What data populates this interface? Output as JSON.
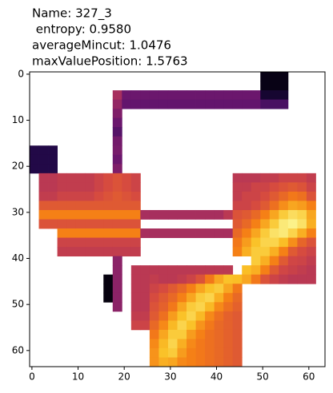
{
  "chart_data": {
    "type": "heatmap",
    "title": [
      "Name: 327_3",
      " entropy: 0.9580",
      "averageMincut: 1.0476",
      "maxValuePosition: 1.5763"
    ],
    "colormap": "inferno",
    "xlim": [
      -0.5,
      63.5
    ],
    "ylim": [
      63.5,
      -0.5
    ],
    "xticks": [
      0,
      10,
      20,
      30,
      40,
      50,
      60
    ],
    "yticks": [
      0,
      10,
      20,
      30,
      40,
      50,
      60
    ],
    "values": [
      [
        null,
        null,
        null,
        null,
        null,
        null,
        null,
        null,
        null,
        null,
        null,
        null,
        null,
        null,
        null,
        null,
        null,
        null,
        null,
        null,
        null,
        null,
        null,
        null,
        null,
        0.03,
        0.03,
        0.03,
        null,
        null,
        null,
        null
      ],
      [
        null,
        null,
        null,
        null,
        null,
        null,
        null,
        null,
        null,
        null,
        null,
        null,
        null,
        null,
        null,
        null,
        null,
        null,
        null,
        null,
        null,
        null,
        null,
        null,
        null,
        0.03,
        0.03,
        0.03,
        null,
        null,
        null,
        null
      ],
      [
        null,
        null,
        null,
        null,
        null,
        null,
        null,
        null,
        null,
        0.45,
        0.3,
        0.3,
        0.3,
        0.3,
        0.3,
        0.3,
        0.3,
        0.3,
        0.3,
        0.3,
        0.3,
        0.3,
        0.3,
        0.3,
        0.3,
        0.08,
        0.08,
        0.08,
        null,
        null,
        null,
        null
      ],
      [
        null,
        null,
        null,
        null,
        null,
        null,
        null,
        null,
        null,
        0.4,
        0.28,
        0.28,
        0.28,
        0.28,
        0.28,
        0.28,
        0.28,
        0.28,
        0.28,
        0.28,
        0.28,
        0.28,
        0.28,
        0.28,
        0.28,
        0.22,
        0.22,
        0.22,
        null,
        null,
        null,
        null
      ],
      [
        null,
        null,
        null,
        null,
        null,
        null,
        null,
        null,
        null,
        0.35,
        null,
        null,
        null,
        null,
        null,
        null,
        null,
        null,
        null,
        null,
        null,
        null,
        null,
        null,
        null,
        null,
        null,
        null,
        null,
        null,
        null,
        null
      ],
      [
        null,
        null,
        null,
        null,
        null,
        null,
        null,
        null,
        null,
        0.3,
        null,
        null,
        null,
        null,
        null,
        null,
        null,
        null,
        null,
        null,
        null,
        null,
        null,
        null,
        null,
        null,
        null,
        null,
        null,
        null,
        null,
        null
      ],
      [
        null,
        null,
        null,
        null,
        null,
        null,
        null,
        null,
        null,
        0.25,
        null,
        null,
        null,
        null,
        null,
        null,
        null,
        null,
        null,
        null,
        null,
        null,
        null,
        null,
        null,
        null,
        null,
        null,
        null,
        null,
        null,
        null
      ],
      [
        null,
        null,
        null,
        null,
        null,
        null,
        null,
        null,
        null,
        0.32,
        null,
        null,
        null,
        null,
        null,
        null,
        null,
        null,
        null,
        null,
        null,
        null,
        null,
        null,
        null,
        null,
        null,
        null,
        null,
        null,
        null,
        null
      ],
      [
        0.12,
        0.12,
        0.12,
        null,
        null,
        null,
        null,
        null,
        null,
        0.33,
        null,
        null,
        null,
        null,
        null,
        null,
        null,
        null,
        null,
        null,
        null,
        null,
        null,
        null,
        null,
        null,
        null,
        null,
        null,
        null,
        null,
        null
      ],
      [
        0.12,
        0.12,
        0.12,
        null,
        null,
        null,
        null,
        null,
        null,
        0.3,
        null,
        null,
        null,
        null,
        null,
        null,
        null,
        null,
        null,
        null,
        null,
        null,
        null,
        null,
        null,
        null,
        null,
        null,
        null,
        null,
        null,
        null
      ],
      [
        0.12,
        0.12,
        0.12,
        null,
        null,
        null,
        null,
        null,
        null,
        0.35,
        null,
        null,
        null,
        null,
        null,
        null,
        null,
        null,
        null,
        null,
        null,
        null,
        null,
        null,
        null,
        null,
        null,
        null,
        null,
        null,
        null,
        null
      ],
      [
        null,
        0.5,
        0.5,
        0.52,
        0.52,
        0.52,
        0.52,
        0.55,
        0.58,
        0.6,
        0.58,
        0.55,
        null,
        null,
        null,
        null,
        null,
        null,
        null,
        null,
        null,
        null,
        0.5,
        0.5,
        0.5,
        0.52,
        0.52,
        0.55,
        0.55,
        0.55,
        0.52,
        null
      ],
      [
        null,
        0.5,
        0.5,
        0.52,
        0.52,
        0.52,
        0.52,
        0.55,
        0.58,
        0.6,
        0.58,
        0.55,
        null,
        null,
        null,
        null,
        null,
        null,
        null,
        null,
        null,
        null,
        0.52,
        0.52,
        0.55,
        0.55,
        0.58,
        0.6,
        0.62,
        0.6,
        0.55,
        null
      ],
      [
        null,
        0.52,
        0.52,
        0.55,
        0.55,
        0.55,
        0.55,
        0.58,
        0.6,
        0.62,
        0.6,
        0.58,
        null,
        null,
        null,
        null,
        null,
        null,
        null,
        null,
        null,
        null,
        0.52,
        0.55,
        0.55,
        0.58,
        0.62,
        0.66,
        0.7,
        0.68,
        0.6,
        null
      ],
      [
        null,
        0.62,
        0.62,
        0.62,
        0.62,
        0.62,
        0.62,
        0.62,
        0.62,
        0.62,
        0.62,
        0.62,
        null,
        null,
        null,
        null,
        null,
        null,
        null,
        null,
        null,
        null,
        0.55,
        0.55,
        0.58,
        0.62,
        0.68,
        0.75,
        0.8,
        0.78,
        0.72,
        null
      ],
      [
        null,
        0.72,
        0.72,
        0.72,
        0.72,
        0.72,
        0.72,
        0.72,
        0.72,
        0.72,
        0.72,
        0.72,
        0.45,
        0.45,
        0.45,
        0.45,
        0.45,
        0.45,
        0.45,
        0.45,
        0.45,
        0.5,
        0.6,
        0.62,
        0.66,
        0.72,
        0.8,
        0.88,
        0.92,
        0.9,
        0.8,
        null
      ],
      [
        null,
        0.6,
        0.6,
        0.6,
        0.6,
        0.6,
        0.6,
        0.6,
        0.6,
        0.6,
        0.6,
        0.6,
        null,
        null,
        null,
        null,
        null,
        null,
        null,
        null,
        null,
        null,
        0.62,
        0.66,
        0.72,
        0.8,
        0.88,
        0.95,
        0.97,
        0.93,
        0.82,
        null
      ],
      [
        null,
        null,
        null,
        0.72,
        0.72,
        0.72,
        0.72,
        0.72,
        0.72,
        0.72,
        0.72,
        0.72,
        0.45,
        0.45,
        0.45,
        0.45,
        0.45,
        0.45,
        0.45,
        0.45,
        0.45,
        0.45,
        0.66,
        0.72,
        0.8,
        0.88,
        0.93,
        0.95,
        0.9,
        0.82,
        0.72,
        null
      ],
      [
        null,
        null,
        null,
        0.55,
        0.55,
        0.55,
        0.55,
        0.55,
        0.55,
        0.55,
        0.55,
        0.55,
        null,
        null,
        null,
        null,
        null,
        null,
        null,
        null,
        null,
        null,
        0.7,
        0.78,
        0.86,
        0.9,
        0.9,
        0.85,
        0.75,
        0.65,
        0.6,
        null
      ],
      [
        null,
        null,
        null,
        0.52,
        0.52,
        0.52,
        0.52,
        0.52,
        0.52,
        0.52,
        0.52,
        0.52,
        null,
        null,
        null,
        null,
        null,
        null,
        null,
        null,
        null,
        null,
        0.72,
        0.82,
        0.88,
        0.88,
        0.82,
        0.72,
        0.62,
        0.58,
        0.55,
        null
      ],
      [
        null,
        null,
        null,
        null,
        null,
        null,
        null,
        null,
        null,
        0.38,
        null,
        null,
        null,
        null,
        null,
        null,
        null,
        null,
        null,
        null,
        null,
        null,
        null,
        null,
        0.88,
        0.82,
        0.72,
        0.62,
        0.56,
        0.55,
        0.52,
        null
      ],
      [
        null,
        null,
        null,
        null,
        null,
        null,
        null,
        null,
        null,
        0.38,
        null,
        0.5,
        0.5,
        0.5,
        0.5,
        0.5,
        0.5,
        0.5,
        0.5,
        0.5,
        0.5,
        0.5,
        null,
        0.85,
        0.82,
        0.72,
        0.62,
        0.56,
        0.54,
        0.52,
        0.5,
        null
      ],
      [
        null,
        null,
        null,
        null,
        null,
        null,
        null,
        null,
        0.02,
        0.38,
        null,
        0.5,
        0.5,
        0.52,
        0.5,
        0.5,
        0.52,
        0.55,
        0.6,
        0.7,
        0.8,
        0.86,
        0.85,
        0.8,
        0.7,
        0.6,
        0.55,
        0.52,
        0.5,
        0.5,
        0.5,
        null
      ],
      [
        null,
        null,
        null,
        null,
        null,
        null,
        null,
        null,
        0.02,
        0.38,
        null,
        0.5,
        0.5,
        0.55,
        0.58,
        0.62,
        0.66,
        0.72,
        0.8,
        0.86,
        0.88,
        0.8,
        0.7,
        null,
        null,
        null,
        null,
        null,
        null,
        null,
        null,
        null
      ],
      [
        null,
        null,
        null,
        null,
        null,
        null,
        null,
        null,
        0.02,
        0.38,
        null,
        0.5,
        0.5,
        0.58,
        0.62,
        0.66,
        0.72,
        0.8,
        0.88,
        0.9,
        0.82,
        0.72,
        0.66,
        null,
        null,
        null,
        null,
        null,
        null,
        null,
        null,
        null
      ],
      [
        null,
        null,
        null,
        null,
        null,
        null,
        null,
        null,
        null,
        0.38,
        null,
        0.5,
        0.5,
        0.6,
        0.64,
        0.7,
        0.8,
        0.88,
        0.9,
        0.84,
        0.74,
        0.68,
        0.64,
        null,
        null,
        null,
        null,
        null,
        null,
        null,
        null,
        null
      ],
      [
        null,
        null,
        null,
        null,
        null,
        null,
        null,
        null,
        null,
        null,
        null,
        0.52,
        0.52,
        0.62,
        0.68,
        0.78,
        0.86,
        0.9,
        0.84,
        0.74,
        0.68,
        0.64,
        0.62,
        null,
        null,
        null,
        null,
        null,
        null,
        null,
        null,
        null
      ],
      [
        null,
        null,
        null,
        null,
        null,
        null,
        null,
        null,
        null,
        null,
        null,
        0.55,
        0.55,
        0.66,
        0.74,
        0.84,
        0.9,
        0.86,
        0.76,
        0.7,
        0.66,
        0.64,
        0.62,
        null,
        null,
        null,
        null,
        null,
        null,
        null,
        null,
        null
      ],
      [
        null,
        null,
        null,
        null,
        null,
        null,
        null,
        null,
        null,
        null,
        null,
        null,
        null,
        0.7,
        0.8,
        0.88,
        0.88,
        0.78,
        0.72,
        0.68,
        0.66,
        0.64,
        0.62,
        null,
        null,
        null,
        null,
        null,
        null,
        null,
        null,
        null
      ],
      [
        null,
        null,
        null,
        null,
        null,
        null,
        null,
        null,
        null,
        null,
        null,
        null,
        null,
        0.74,
        0.84,
        0.9,
        0.82,
        0.74,
        0.7,
        0.68,
        0.66,
        0.64,
        0.62,
        null,
        null,
        null,
        null,
        null,
        null,
        null,
        null,
        null
      ],
      [
        null,
        null,
        null,
        null,
        null,
        null,
        null,
        null,
        null,
        null,
        null,
        null,
        null,
        0.76,
        0.86,
        0.88,
        0.78,
        0.72,
        0.7,
        0.68,
        0.66,
        0.64,
        0.62,
        null,
        null,
        null,
        null,
        null,
        null,
        null,
        null,
        null
      ],
      [
        null,
        null,
        null,
        null,
        null,
        null,
        null,
        null,
        null,
        null,
        null,
        null,
        null,
        0.76,
        0.82,
        0.8,
        0.74,
        0.72,
        0.7,
        0.68,
        0.66,
        0.64,
        0.62,
        null,
        null,
        null,
        null,
        null,
        null,
        null,
        null,
        null
      ]
    ]
  }
}
